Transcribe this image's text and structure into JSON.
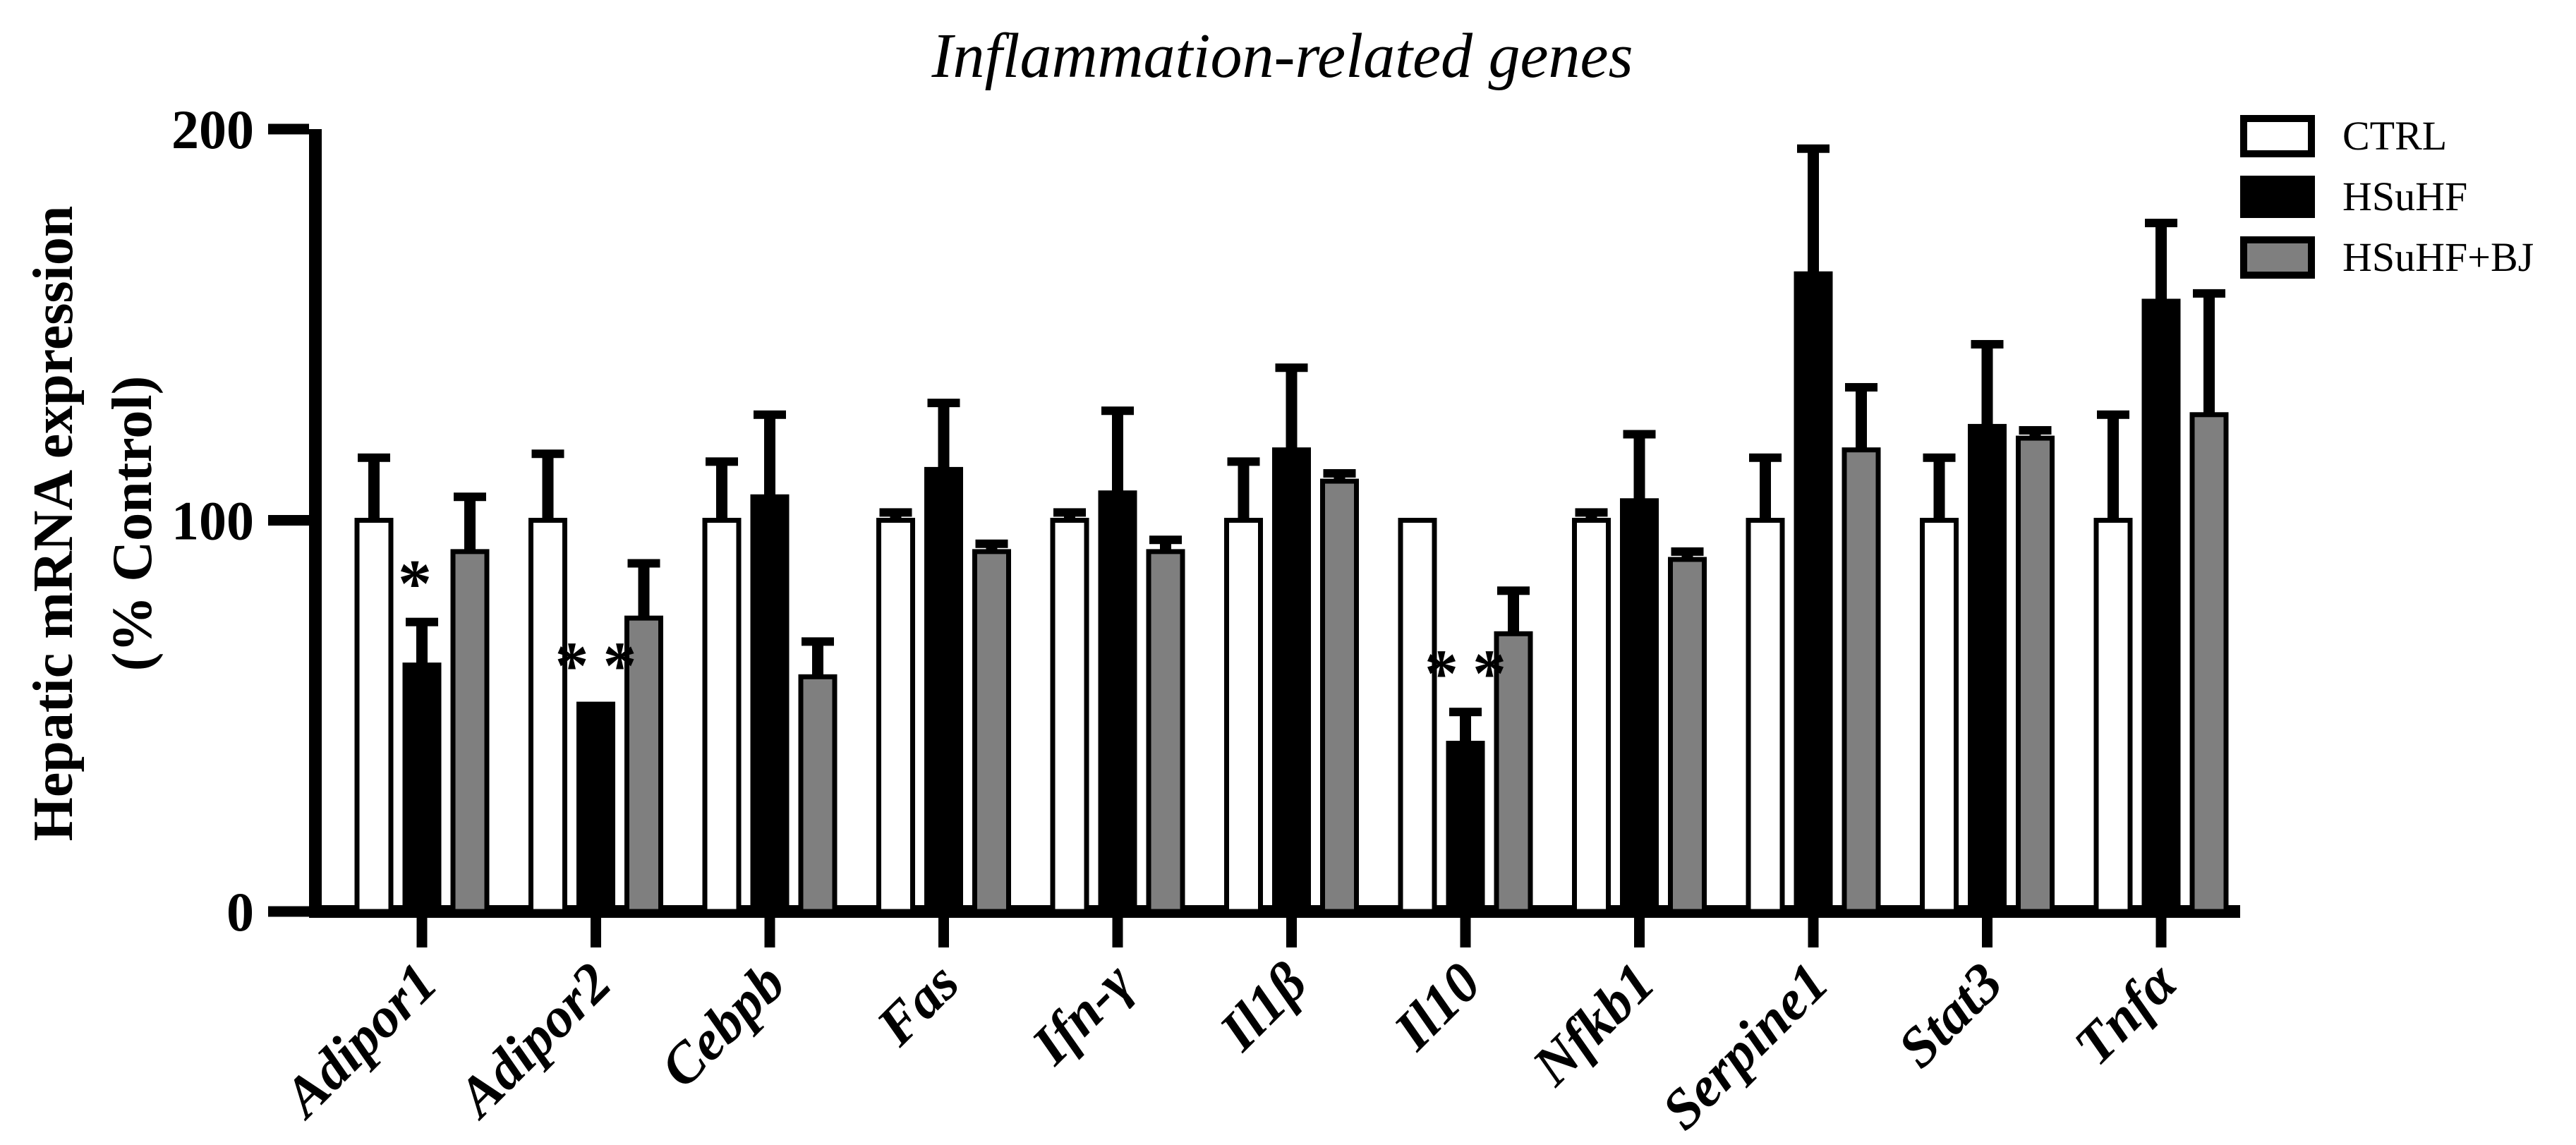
{
  "figure": {
    "title": "Inflammation-related genes"
  },
  "y_axis": {
    "label_line1": "Hepatic mRNA expression",
    "label_line2": "(% Control)",
    "tick_labels": [
      "0",
      "100",
      "200"
    ]
  },
  "legend": [
    {
      "label": "CTRL",
      "fill": "#ffffff"
    },
    {
      "label": "HSuHF",
      "fill": "#000000"
    },
    {
      "label": "HSuHF+BJ",
      "fill": "#7f7f7f"
    }
  ],
  "colors": {
    "axis": "#000000",
    "bar_outline": "#000000",
    "gray_series": "#7f7f7f"
  },
  "chart_data": {
    "type": "bar",
    "title": "Inflammation-related genes",
    "ylabel": "Hepatic mRNA expression (% Control)",
    "ylim": [
      0,
      200
    ],
    "yticks": [
      0,
      100,
      200
    ],
    "grid": false,
    "legend_position": "top-right",
    "categories": [
      "Adipor1",
      "Adipor2",
      "Cebpb",
      "Fas",
      "Ifn-γ",
      "Il1β",
      "Il10",
      "Nfkb1",
      "Serpine1",
      "Stat3",
      "Tnfα"
    ],
    "series": [
      {
        "name": "CTRL",
        "fill": "#ffffff",
        "values": [
          100,
          100,
          100,
          100,
          100,
          100,
          100,
          100,
          100,
          100,
          100
        ],
        "error_tops": [
          116,
          117,
          115,
          102,
          102,
          115,
          100,
          102,
          116,
          116,
          127
        ]
      },
      {
        "name": "HSuHF",
        "fill": "#000000",
        "values": [
          63,
          53,
          106,
          113,
          107,
          118,
          43,
          105,
          163,
          124,
          156
        ],
        "error_tops": [
          74,
          53,
          127,
          130,
          128,
          139,
          51,
          122,
          195,
          145,
          176
        ]
      },
      {
        "name": "HSuHF+BJ",
        "fill": "#7f7f7f",
        "values": [
          92,
          75,
          60,
          92,
          92,
          110,
          71,
          90,
          118,
          121,
          127
        ],
        "error_tops": [
          106,
          89,
          69,
          94,
          95,
          112,
          82,
          92,
          134,
          123,
          158
        ]
      }
    ],
    "significance": [
      {
        "category_index": 0,
        "series_index": 1,
        "label": "*"
      },
      {
        "category_index": 1,
        "series_index": 1,
        "label": "**"
      },
      {
        "category_index": 6,
        "series_index": 1,
        "label": "**"
      }
    ]
  }
}
